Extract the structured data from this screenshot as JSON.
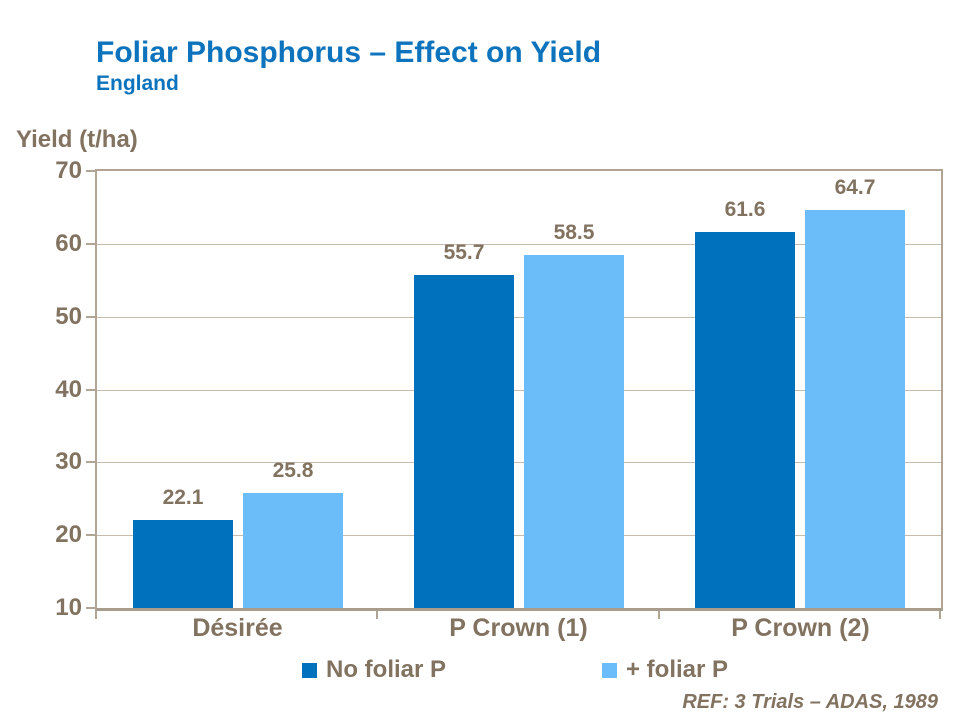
{
  "title": "Foliar Phosphorus – Effect on Yield",
  "subtitle": "England",
  "ref_note": "REF: 3 Trials – ADAS, 1989",
  "colors": {
    "title_blue": "#0d73bd",
    "text_brown": "#827260",
    "gridline": "#c6bcac",
    "axis_border": "#b0a494",
    "series_dark_blue": "#0071bd",
    "series_light_blue": "#6abdf9"
  },
  "chart_data": {
    "type": "bar",
    "title": "Foliar Phosphorus – Effect on Yield",
    "subtitle": "England",
    "ylabel": "Yield (t/ha)",
    "xlabel": "",
    "ylim": [
      10,
      70
    ],
    "ytick_step": 10,
    "grid": true,
    "legend_position": "bottom",
    "categories": [
      "Désirée",
      "P Crown (1)",
      "P Crown (2)"
    ],
    "series": [
      {
        "name": "No foliar P",
        "color": "#0071bd",
        "values": [
          22.1,
          55.7,
          61.6
        ]
      },
      {
        "name": "+ foliar P",
        "color": "#6abdf9",
        "values": [
          25.8,
          58.5,
          64.7
        ]
      }
    ]
  }
}
